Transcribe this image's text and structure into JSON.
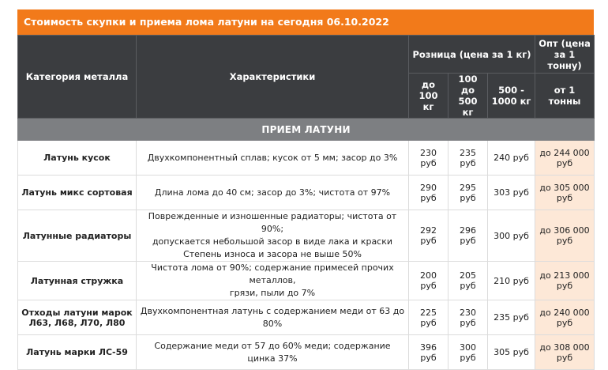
{
  "title": "Стоимость скупки и приема лома латуни на сегодня 06.10.2022",
  "headers": {
    "category": "Категория металла",
    "characteristics": "Характеристики",
    "retail": "Розница (цена за 1 кг)",
    "wholesale": "Опт (цена за 1 тонну)",
    "retail_sub": [
      "до 100 кг",
      "100 до 500 кг",
      "500 - 1000 кг"
    ],
    "wholesale_sub": "от 1 тонны"
  },
  "section_title": "ПРИЕМ ЛАТУНИ",
  "rows": [
    {
      "category": "Латунь кусок",
      "desc": [
        "Двухкомпонентный сплав; кусок от 5 мм; засор до 3%"
      ],
      "p1": "230 руб",
      "p2": "235 руб",
      "p3": "240 руб",
      "opt": "до 244 000 руб"
    },
    {
      "category": "Латунь микс сортовая",
      "desc": [
        "Длина лома до 40 см; засор до 3%; чистота от 97%"
      ],
      "p1": "290 руб",
      "p2": "295 руб",
      "p3": "303 руб",
      "opt": "до 305 000 руб"
    },
    {
      "category": "Латунные радиаторы",
      "desc": [
        "Поврежденные и изношенные радиаторы; чистота от 90%;",
        "допускается небольшой засор в виде лака и краски",
        "Степень износа и засора не выше 50%"
      ],
      "p1": "292 руб",
      "p2": "296 руб",
      "p3": "300 руб",
      "opt": "до 306 000 руб"
    },
    {
      "category": "Латунная стружка",
      "desc": [
        "Чистота лома от 90%; содержание примесей прочих металлов,",
        "грязи, пыли до 7%"
      ],
      "p1": "200 руб",
      "p2": "205 руб",
      "p3": "210 руб",
      "opt": "до 213 000 руб"
    },
    {
      "category": "Отходы латуни марок Л63, Л68, Л70, Л80",
      "desc": [
        "Двухкомпонентная латунь с содержанием меди от 63 до 80%"
      ],
      "p1": "225 руб",
      "p2": "230 руб",
      "p3": "235 руб",
      "opt": "до 240 000 руб"
    },
    {
      "category": "Латунь марки ЛС-59",
      "desc": [
        "Содержание меди от 57 до 60% меди; содержание цинка 37%"
      ],
      "p1": "396 руб",
      "p2": "300 руб",
      "p3": "305 руб",
      "opt": "до 308 000 руб"
    }
  ]
}
